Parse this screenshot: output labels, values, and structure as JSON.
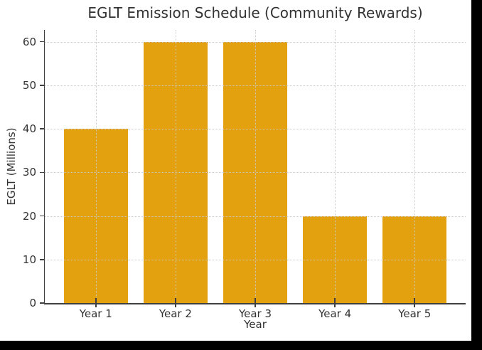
{
  "chart_data": {
    "type": "bar",
    "title": "EGLT Emission Schedule (Community Rewards)",
    "xlabel": "Year",
    "ylabel": "EGLT (Millions)",
    "categories": [
      "Year 1",
      "Year 2",
      "Year 3",
      "Year 4",
      "Year 5"
    ],
    "values": [
      40,
      60,
      60,
      20,
      20
    ],
    "yticks": [
      0,
      10,
      20,
      30,
      40,
      50,
      60
    ],
    "ylim": [
      0,
      62.7
    ],
    "grid": "dotted",
    "grid_axes": "both",
    "legend": "none",
    "colors": {
      "bar": "#E3A110",
      "grid": "#C8C8C8",
      "spine": "#404040",
      "text": "#333333",
      "figure_background": "#FFFFFF",
      "outer_background": "#000000"
    }
  }
}
